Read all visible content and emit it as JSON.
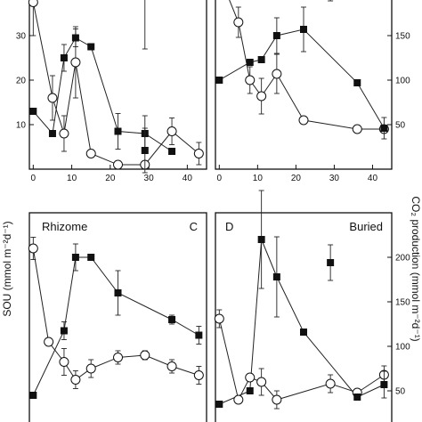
{
  "chart_data": {
    "type": "scatter",
    "y_left_label": "SOU (mmol m⁻²d⁻¹)",
    "y_right_label": "CO₂ production (mmol m⁻²d⁻¹)",
    "marker_legend": {
      "filled_square": "CO₂ production",
      "open_circle": "SOU"
    },
    "panels": [
      {
        "id": "A",
        "letter": "",
        "name": "",
        "xlim": [
          -1,
          45
        ],
        "x_ticks": [
          0,
          10,
          20,
          30,
          40
        ],
        "left_ylim": [
          0,
          50
        ],
        "left_ticks": [
          10,
          20,
          30,
          40
        ],
        "right_ylim": [
          0,
          250
        ],
        "right_ticks": [],
        "show_x_ticklabels": true,
        "circles": [
          {
            "x": 0,
            "y": 37.5,
            "err": 7.5
          },
          {
            "x": 5,
            "y": 16,
            "err": 5
          },
          {
            "x": 8,
            "y": 8,
            "err": 4
          },
          {
            "x": 11,
            "y": 24,
            "err": 8
          },
          {
            "x": 15,
            "y": 3.5,
            "err": 0
          },
          {
            "x": 22,
            "y": 1,
            "err": 0
          },
          {
            "x": 29,
            "y": 1,
            "err": 0
          },
          {
            "x": 36,
            "y": 8.5,
            "err": 3
          },
          {
            "x": 43,
            "y": 3.5,
            "err": 2.5
          }
        ],
        "squares": [
          {
            "x": 0,
            "y": 13,
            "err": 0
          },
          {
            "x": 5,
            "y": 8,
            "err": 0
          },
          {
            "x": 8,
            "y": 25,
            "err": 3
          },
          {
            "x": 11,
            "y": 29.5,
            "err": 2
          },
          {
            "x": 15,
            "y": 27.5,
            "err": 0
          },
          {
            "x": 22,
            "y": 8.5,
            "err": 4
          },
          {
            "x": 29,
            "y": 8,
            "err": 4
          },
          {
            "x": 36,
            "y": 4,
            "err": 0
          }
        ],
        "outliers": [
          {
            "x": 29,
            "y": 40,
            "err": 13
          }
        ]
      },
      {
        "id": "B",
        "letter": "",
        "name": "",
        "xlim": [
          -1,
          45
        ],
        "x_ticks": [
          0,
          10,
          20,
          30,
          40
        ],
        "left_ylim": [
          0,
          50
        ],
        "left_ticks": [],
        "right_ylim": [
          0,
          250
        ],
        "right_ticks": [
          50,
          100,
          150,
          200
        ],
        "show_x_ticklabels": true,
        "circles": [
          {
            "x": 0,
            "y": 218,
            "err": 0
          },
          {
            "x": 5,
            "y": 165,
            "err": 17
          },
          {
            "x": 8,
            "y": 100,
            "err": 15
          },
          {
            "x": 11,
            "y": 82,
            "err": 20
          },
          {
            "x": 15,
            "y": 107,
            "err": 22
          },
          {
            "x": 22,
            "y": 55,
            "err": 0
          },
          {
            "x": 36,
            "y": 45,
            "err": 0
          },
          {
            "x": 43,
            "y": 45,
            "err": 0
          }
        ],
        "squares": [
          {
            "x": 0,
            "y": 100,
            "err": 0
          },
          {
            "x": 8,
            "y": 120,
            "err": 0
          },
          {
            "x": 11,
            "y": 123,
            "err": 0
          },
          {
            "x": 15,
            "y": 150,
            "err": 20
          },
          {
            "x": 22,
            "y": 157,
            "err": 25
          },
          {
            "x": 36,
            "y": 97,
            "err": 0
          },
          {
            "x": 43,
            "y": 46,
            "err": 12
          }
        ],
        "outliers": [
          {
            "x": 29,
            "y": 197,
            "err": 8
          }
        ]
      },
      {
        "id": "C",
        "letter": "C",
        "name": "Rhizome",
        "xlim": [
          -1,
          45
        ],
        "x_ticks": [
          0,
          10,
          20,
          30,
          40
        ],
        "left_ylim": [
          0,
          50
        ],
        "left_ticks": [],
        "right_ylim": [
          0,
          250
        ],
        "right_ticks": [],
        "show_x_ticklabels": false,
        "circles": [
          {
            "x": 0,
            "y": 42,
            "err": 2.5
          },
          {
            "x": 4,
            "y": 21,
            "err": 0
          },
          {
            "x": 8,
            "y": 16.5,
            "err": 3
          },
          {
            "x": 11,
            "y": 12.5,
            "err": 2
          },
          {
            "x": 15,
            "y": 15,
            "err": 2
          },
          {
            "x": 22,
            "y": 17.5,
            "err": 1.5
          },
          {
            "x": 29,
            "y": 18,
            "err": 1
          },
          {
            "x": 36,
            "y": 15.5,
            "err": 1.5
          },
          {
            "x": 43,
            "y": 13.5,
            "err": 2
          }
        ],
        "squares": [
          {
            "x": 0,
            "y": 9,
            "err": 0
          },
          {
            "x": 8,
            "y": 23.5,
            "err": 2
          },
          {
            "x": 11,
            "y": 40,
            "err": 3
          },
          {
            "x": 15,
            "y": 40,
            "err": 0
          },
          {
            "x": 22,
            "y": 32,
            "err": 5
          },
          {
            "x": 36,
            "y": 26,
            "err": 1
          },
          {
            "x": 43,
            "y": 22.5,
            "err": 2
          }
        ],
        "outliers": [
          {
            "x": 29,
            "y": 64,
            "err": 5
          }
        ]
      },
      {
        "id": "D",
        "letter": "D",
        "name": "Buried",
        "xlim": [
          -1,
          45
        ],
        "x_ticks": [
          0,
          10,
          20,
          30,
          40
        ],
        "left_ylim": [
          0,
          50
        ],
        "left_ticks": [],
        "right_ylim": [
          0,
          250
        ],
        "right_ticks": [
          50,
          100,
          150,
          200
        ],
        "show_x_ticklabels": false,
        "circles": [
          {
            "x": 0,
            "y": 131,
            "err": 10
          },
          {
            "x": 5,
            "y": 40,
            "err": 0
          },
          {
            "x": 8,
            "y": 65,
            "err": 0
          },
          {
            "x": 11,
            "y": 60,
            "err": 15
          },
          {
            "x": 15,
            "y": 40,
            "err": 10
          },
          {
            "x": 29,
            "y": 58,
            "err": 10
          },
          {
            "x": 36,
            "y": 48,
            "err": 0
          },
          {
            "x": 43,
            "y": 68,
            "err": 10
          }
        ],
        "squares": [
          {
            "x": 0,
            "y": 35,
            "err": 0
          },
          {
            "x": 8,
            "y": 50,
            "err": 0
          },
          {
            "x": 11,
            "y": 220,
            "err": 55
          },
          {
            "x": 15,
            "y": 178,
            "err": 45
          },
          {
            "x": 22,
            "y": 116,
            "err": 0
          },
          {
            "x": 36,
            "y": 43,
            "err": 0
          },
          {
            "x": 43,
            "y": 57,
            "err": 15
          }
        ],
        "outliers": [
          {
            "x": 29,
            "y": 194,
            "err": 20
          }
        ]
      }
    ]
  },
  "colors": {
    "ink": "#111111",
    "open_fill": "#ffffff",
    "filled": "#111111"
  }
}
